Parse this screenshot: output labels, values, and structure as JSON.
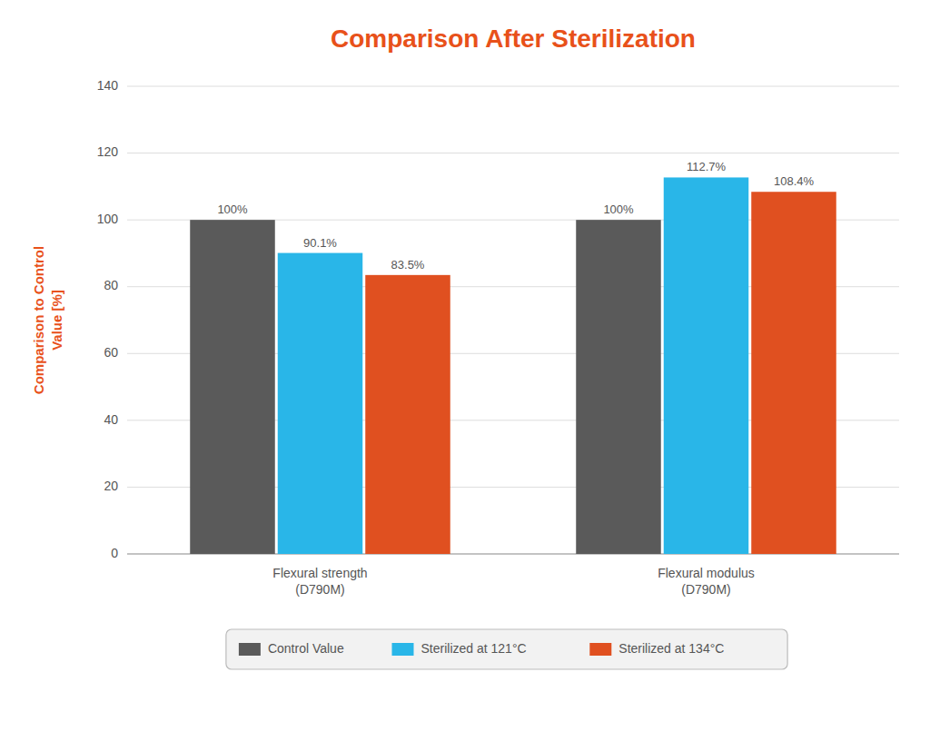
{
  "chart_data": {
    "type": "bar",
    "title": "Comparison After Sterilization",
    "y_label": "Comparison to Control\nValue [%]",
    "categories": [
      "Flexural strength\n(D790M)",
      "Flexural modulus\n(D790M)"
    ],
    "series": [
      {
        "name": "Control Value",
        "color": "#5a5a5a",
        "values": [
          100.0,
          100.0
        ],
        "value_labels": [
          "100%",
          "100%"
        ]
      },
      {
        "name": "Sterilized at 121°C",
        "color": "#29B6E8",
        "values": [
          90.1,
          112.7
        ],
        "value_labels": [
          "90.1%",
          "112.7%"
        ]
      },
      {
        "name": "Sterilized at 134°C",
        "color": "#E05020",
        "values": [
          83.5,
          108.4
        ],
        "value_labels": [
          "83.5%",
          "108.4%"
        ]
      }
    ],
    "ylim": [
      0,
      140
    ],
    "yticks": [
      0,
      20,
      40,
      60,
      80,
      100,
      120,
      140
    ],
    "grid": true,
    "legend": "bottom",
    "data_labels": true
  }
}
